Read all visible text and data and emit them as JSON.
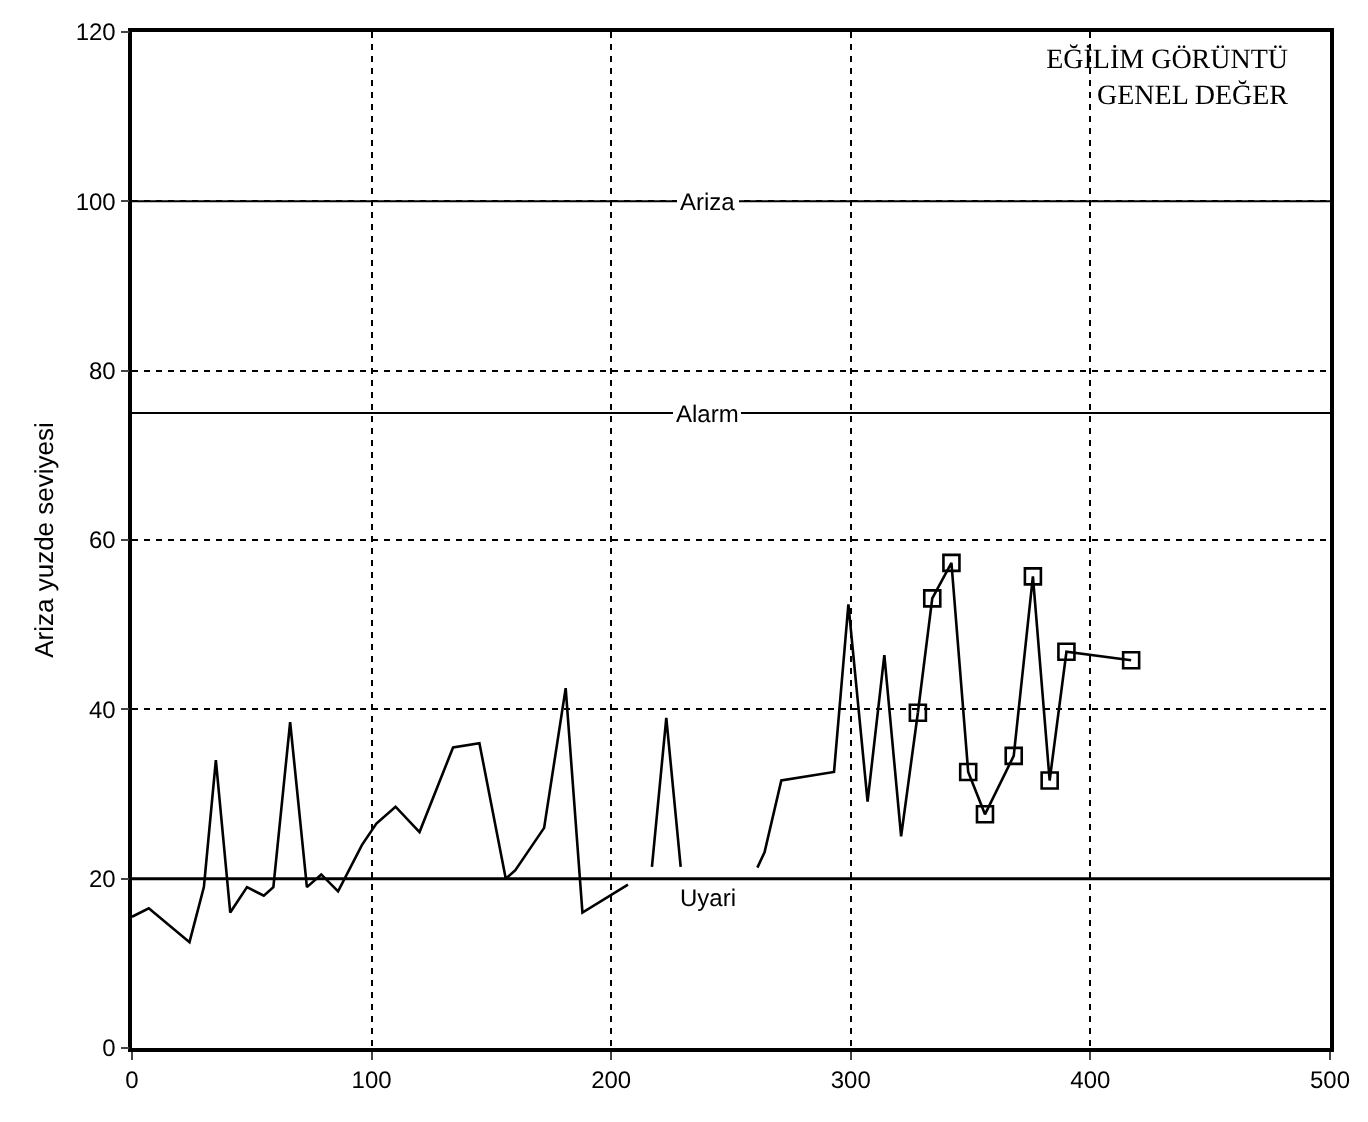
{
  "chart_data": {
    "type": "line",
    "title": "EĞİLİM GÖRÜNTÜ\nGENEL DEĞER",
    "ylabel": "Ariza yuzde seviyesi",
    "series": [
      {
        "color": "#000000",
        "marker": "none",
        "x": [
          0,
          7,
          24,
          30,
          35,
          41,
          48,
          55,
          59,
          66,
          73,
          79,
          86,
          96,
          102,
          110,
          120,
          134,
          145,
          156,
          160,
          172,
          181,
          188,
          207,
          212,
          217,
          223,
          229,
          245,
          261,
          264,
          271,
          293,
          299,
          307,
          314,
          321,
          328
        ],
        "values": [
          15.5,
          16.5,
          12.5,
          19,
          34,
          16,
          19,
          18,
          19,
          38.5,
          19,
          20.5,
          18.5,
          24,
          26.5,
          28.5,
          25.5,
          35.5,
          36,
          20,
          21,
          26,
          42.5,
          16,
          19.3,
          null,
          21.4,
          39,
          21.4,
          null,
          21.3,
          23.1,
          31.6,
          32.6,
          52.4,
          29.1,
          46.4,
          25,
          39.6
        ]
      },
      {
        "color": "#000000",
        "marker": "square",
        "x": [
          328,
          334,
          342,
          349,
          356,
          368,
          376,
          383,
          390,
          417
        ],
        "values": [
          39.6,
          53.1,
          57.3,
          32.6,
          27.6,
          34.5,
          55.7,
          31.6,
          46.8,
          45.8
        ]
      }
    ],
    "xlim": [
      0,
      500
    ],
    "xticks": [
      0,
      100,
      200,
      300,
      400,
      500
    ],
    "ylim": [
      0,
      120
    ],
    "yticks": [
      0,
      20,
      40,
      60,
      80,
      100,
      120
    ],
    "grid": true,
    "line_style": "solid",
    "ref_lines": [
      {
        "axis": "y",
        "value": 100,
        "label": "Ariza",
        "color": "#000000"
      },
      {
        "axis": "y",
        "value": 75,
        "label": "Alarm",
        "color": "#000000"
      },
      {
        "axis": "y",
        "value": 20,
        "label": "Uyari",
        "color": "#000000"
      }
    ]
  }
}
